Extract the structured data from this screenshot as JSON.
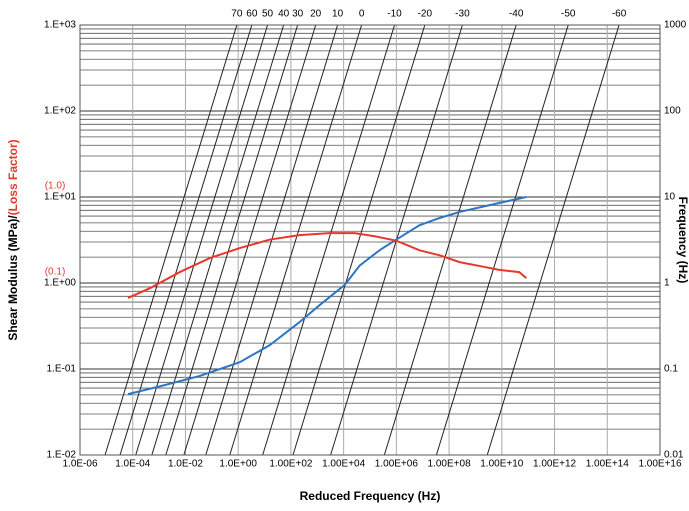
{
  "chart_data": {
    "type": "nomograph",
    "x_label": "Reduced Frequency (Hz)",
    "y_label": "Shear Modulus (MPa)/",
    "y_label_red": "(Loss Factor)",
    "y2_label": "Frequency (Hz)",
    "log_x": true,
    "log_y": true,
    "grid": true,
    "minor_grid": true,
    "xlim": [
      1e-06,
      1e+16
    ],
    "xticks": [
      {
        "value": 1e-06,
        "label": "1.0E-06"
      },
      {
        "value": 0.0001,
        "label": "1.0E-04"
      },
      {
        "value": 0.01,
        "label": "1.0E-02"
      },
      {
        "value": 1,
        "label": "1.0E+00"
      },
      {
        "value": 100.0,
        "label": "1.00E+02"
      },
      {
        "value": 10000.0,
        "label": "1.00E+04"
      },
      {
        "value": 1000000.0,
        "label": "1.00E+06"
      },
      {
        "value": 100000000.0,
        "label": "1.00E+08"
      },
      {
        "value": 10000000000.0,
        "label": "1.00E+10"
      },
      {
        "value": 1000000000000.0,
        "label": "1.00E+12"
      },
      {
        "value": 100000000000000.0,
        "label": "1.00E+14"
      },
      {
        "value": 1e+16,
        "label": "1.00E+16"
      }
    ],
    "ylim": [
      0.01,
      1000
    ],
    "yticks": [
      {
        "value": 0.01,
        "label": "1.E-02"
      },
      {
        "value": 0.1,
        "label": "1.E-01"
      },
      {
        "value": 1,
        "label": "1.E+00"
      },
      {
        "value": 10,
        "label": "1.E+01"
      },
      {
        "value": 100,
        "label": "1.E+02"
      },
      {
        "value": 1000,
        "label": "1.E+03"
      }
    ],
    "y2lim": [
      0.01,
      1000
    ],
    "y2ticks": [
      0.01,
      0.1,
      1,
      10,
      100,
      1000
    ],
    "annotations": [
      {
        "text": "(1.0)",
        "y": 10,
        "color": "#e8382b"
      },
      {
        "text": "(0.1)",
        "y": 1,
        "color": "#e8382b"
      }
    ],
    "isotherms": {
      "temperatures": [
        70,
        60,
        50,
        40,
        30,
        20,
        10,
        0,
        -10,
        -20,
        -30,
        -40,
        -50,
        -60
      ],
      "x_at_top": [
        0.89,
        3.3,
        13,
        53,
        180,
        870,
        5900,
        48000,
        850000,
        12000000,
        320000000,
        35000000000,
        3300000000000,
        280000000000000
      ],
      "color": "#222222"
    },
    "series": [
      {
        "color": "#2e75c2",
        "x": [
          6.6e-05,
          0.0011,
          0.035,
          1.15,
          16,
          210,
          1200,
          11000,
          41000,
          230000,
          1000000,
          7600000,
          44000000,
          250000000,
          3800000000,
          85000000000
        ],
        "values": [
          0.051,
          0.063,
          0.083,
          0.12,
          0.19,
          0.35,
          0.55,
          0.95,
          1.6,
          2.4,
          3.2,
          4.7,
          5.7,
          6.7,
          8.1,
          10
        ]
      },
      {
        "color": "#e8382b",
        "x": [
          6.6e-05,
          0.00045,
          0.0061,
          0.084,
          1.15,
          16,
          210,
          2900,
          26000,
          150000,
          1000000,
          7600000,
          44000000,
          250000000,
          1400000000,
          8000000000,
          46000000000,
          85000000000
        ],
        "values": [
          0.67,
          0.87,
          1.34,
          1.95,
          2.55,
          3.2,
          3.6,
          3.8,
          3.8,
          3.5,
          3.1,
          2.4,
          2.1,
          1.75,
          1.58,
          1.42,
          1.34,
          1.14
        ]
      }
    ]
  }
}
